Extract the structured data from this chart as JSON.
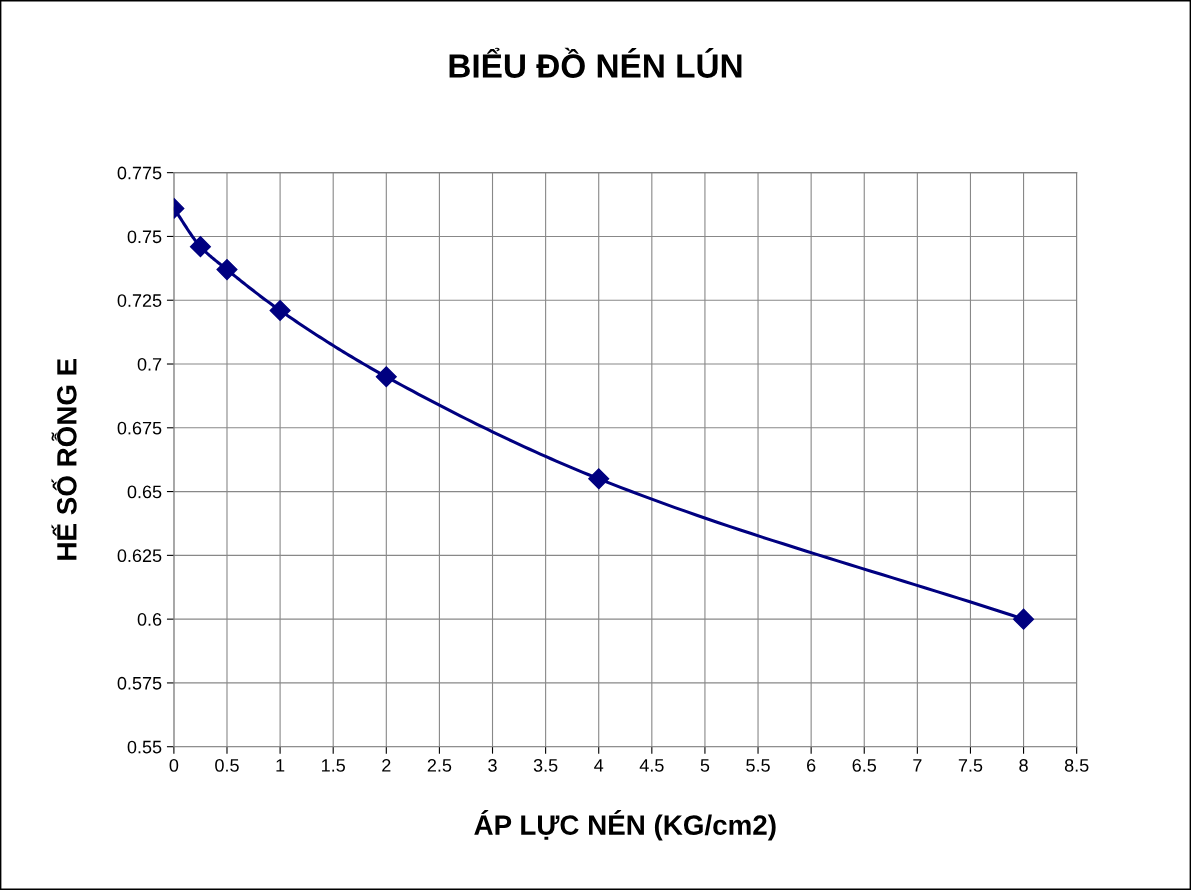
{
  "chart_data": {
    "type": "line",
    "title": "BIỂU ĐỒ NÉN LÚN",
    "xlabel": "ÁP LỰC NÉN (KG/cm2)",
    "ylabel": "HẾ SỐ RỖNG E",
    "x": [
      0,
      0.25,
      0.5,
      1,
      2,
      4,
      8
    ],
    "series": [
      {
        "color": "#000080",
        "values": [
          0.761,
          0.746,
          0.737,
          0.721,
          0.695,
          0.655,
          0.6
        ]
      }
    ],
    "xlim": [
      0,
      8.5
    ],
    "xticks": [
      0,
      0.5,
      1,
      1.5,
      2,
      2.5,
      3,
      3.5,
      4,
      4.5,
      5,
      5.5,
      6,
      6.5,
      7,
      7.5,
      8,
      8.5
    ],
    "ylim": [
      0.55,
      0.775
    ],
    "yticks": [
      0.55,
      0.575,
      0.6,
      0.625,
      0.65,
      0.675,
      0.7,
      0.725,
      0.75,
      0.775
    ],
    "grid": true,
    "marker": "diamond",
    "line_style": "solid",
    "legend": false
  }
}
